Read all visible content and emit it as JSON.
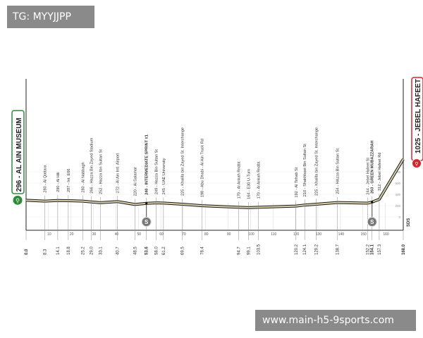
{
  "watermarks": {
    "top_left": "TG: MYYJJPP",
    "bottom_right": "www.main-h5-9sports.com"
  },
  "logo_text": "SDS",
  "colors": {
    "start": "#2e8b3e",
    "finish": "#d0282e",
    "profile": "#d8cfa8",
    "profile_outline": "#1a1a1a",
    "sprint": "#777777"
  },
  "chart_data": {
    "type": "area",
    "xlabel": "",
    "ylabel": "",
    "xlim": [
      0,
      168
    ],
    "ylim": [
      0,
      1025
    ],
    "x_ticks": [
      10,
      20,
      30,
      40,
      50,
      60,
      70,
      80,
      90,
      100,
      110,
      120,
      130,
      140,
      150,
      160
    ],
    "y_ticks": [
      0,
      200,
      400,
      600,
      800
    ],
    "grid": true,
    "start": {
      "label": "296 - AL AIN MUSEUM",
      "km": 0.0,
      "altitude": 296
    },
    "finish": {
      "label": "1025 - JEBEL HAFEET",
      "km": 168.0,
      "altitude": 1025
    },
    "waypoints": [
      {
        "km": "0.0",
        "altitude": 296,
        "name": "",
        "label": ""
      },
      {
        "km": "8.3",
        "altitude": 280,
        "label": "280 - Al Qattara"
      },
      {
        "km": "14.1",
        "altitude": 290,
        "label": "290 - Al Hili"
      },
      {
        "km": "18.8",
        "altitude": 287,
        "label": "287 - Int. E66"
      },
      {
        "km": "25.2",
        "altitude": 280,
        "label": "280 - Al Nabbagh"
      },
      {
        "km": "29.0",
        "altitude": 266,
        "label": "266 - Hazza Bin Zayed Stadium"
      },
      {
        "km": "33.1",
        "altitude": 252,
        "label": "252 - Hazza Ibn Sultan St"
      },
      {
        "km": "40.7",
        "altitude": 272,
        "label": "272 - Al Ain Intl. Airport"
      },
      {
        "km": "48.5",
        "altitude": 220,
        "label": "220 - Al Salamat"
      },
      {
        "km": "53.6",
        "altitude": 240,
        "label": "240 - INTERMEDIATE SPRINT #1",
        "sprint": true
      },
      {
        "km": "58.0",
        "altitude": 249,
        "label": "249 - Hazza Bin Sultan St"
      },
      {
        "km": "61.2",
        "altitude": 245,
        "label": "245 - UAE University"
      },
      {
        "km": "69.5",
        "altitude": 225,
        "label": "225 - Khalifa bin Zayed St. Interchange"
      },
      {
        "km": "78.4",
        "altitude": 198,
        "label": "198 - Abu Dhabi - Al Ain Truck Rd"
      },
      {
        "km": "94.7",
        "altitude": 170,
        "label": "170 - Al Ankah Rndbt."
      },
      {
        "km": "99.1",
        "altitude": 164,
        "label": "164 - E30 U-Turn"
      },
      {
        "km": "103.5",
        "altitude": 170,
        "label": "170 - Al Ankah Rndbt."
      },
      {
        "km": "120.2",
        "altitude": 192,
        "label": "192 - Al Tirhab St"
      },
      {
        "km": "124.1",
        "altitude": 210,
        "label": "210 - Shakhboot Bin Sultan St"
      },
      {
        "km": "129.2",
        "altitude": 225,
        "label": "225 - Khalifa bin Zayed St. Interchange"
      },
      {
        "km": "138.7",
        "altitude": 254,
        "label": "254 - HAzza Bin Sultan St."
      },
      {
        "km": "152.2",
        "altitude": 244,
        "label": "244 - Jebel Hafeet St"
      },
      {
        "km": "154.1",
        "altitude": 263,
        "label": "263 - GREEN MUBAZZARAH",
        "sprint": true
      },
      {
        "km": "157.3",
        "altitude": 312,
        "label": "312 - Jebel Hafeet Rd"
      },
      {
        "km": "168.0",
        "altitude": 1025,
        "label": ""
      }
    ]
  }
}
